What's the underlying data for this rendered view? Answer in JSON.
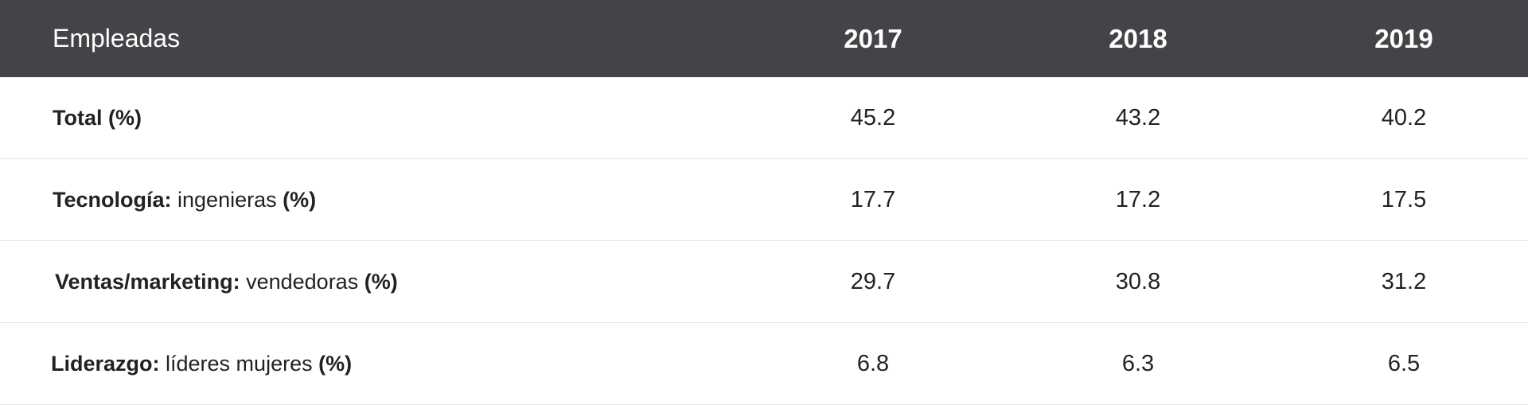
{
  "table": {
    "header": {
      "label": "Empleadas",
      "years": [
        "2017",
        "2018",
        "2019"
      ]
    },
    "rows": [
      {
        "bold": "Total (%)",
        "normal": "",
        "suffix": "",
        "values": [
          "45.2",
          "43.2",
          "40.2"
        ]
      },
      {
        "bold": "Tecnología:",
        "normal": " ingenieras ",
        "suffix": "(%)",
        "values": [
          "17.7",
          "17.2",
          "17.5"
        ]
      },
      {
        "bold": "Ventas/marketing:",
        "normal": " vendedoras ",
        "suffix": "(%)",
        "values": [
          "29.7",
          "30.8",
          "31.2"
        ]
      },
      {
        "bold": "Liderazgo:",
        "normal": " líderes mujeres ",
        "suffix": "(%)",
        "values": [
          "6.8",
          "6.3",
          "6.5"
        ]
      }
    ]
  }
}
